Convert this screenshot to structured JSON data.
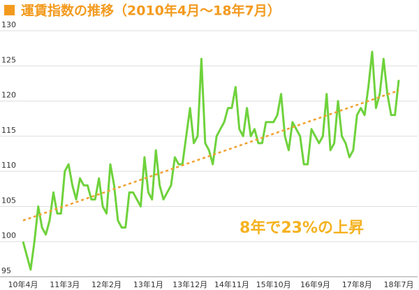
{
  "chart_data": {
    "type": "line",
    "title": "運賃指数の推移（2010年4月～18年7月）",
    "annotation": "8年で23%の上昇",
    "categories": [
      "10年4月",
      null,
      null,
      null,
      null,
      null,
      null,
      null,
      null,
      null,
      null,
      "11年3月",
      null,
      null,
      null,
      null,
      null,
      null,
      null,
      null,
      null,
      null,
      "12年2月",
      null,
      null,
      null,
      null,
      null,
      null,
      null,
      null,
      null,
      null,
      "13年1月",
      null,
      null,
      null,
      null,
      null,
      null,
      null,
      null,
      null,
      null,
      "13年12月",
      null,
      null,
      null,
      null,
      null,
      null,
      null,
      null,
      null,
      null,
      "14年11月",
      null,
      null,
      null,
      null,
      null,
      null,
      null,
      null,
      null,
      null,
      "15年10月",
      null,
      null,
      null,
      null,
      null,
      null,
      null,
      null,
      null,
      null,
      "16年9月",
      null,
      null,
      null,
      null,
      null,
      null,
      null,
      null,
      null,
      null,
      "17年8月",
      null,
      null,
      null,
      null,
      null,
      null,
      null,
      null,
      null,
      null,
      "18年7月"
    ],
    "series": [
      {
        "color": "#6fd23c",
        "values": [
          100,
          98,
          96,
          100,
          105,
          102,
          101,
          103,
          107,
          104,
          104,
          110,
          111,
          108,
          106,
          109,
          108,
          108,
          106,
          106,
          109,
          105,
          104,
          111,
          108,
          103,
          102,
          102,
          107,
          107,
          106,
          105,
          112,
          107,
          106,
          113,
          108,
          106,
          107,
          108,
          112,
          111,
          111,
          115,
          119,
          114,
          115,
          126,
          114,
          113,
          111,
          115,
          116,
          117,
          119,
          119,
          122,
          116,
          115,
          119,
          115,
          116,
          114,
          114,
          117,
          117,
          117,
          118,
          121,
          115,
          113,
          117,
          116,
          115,
          111,
          111,
          116,
          115,
          114,
          115,
          121,
          113,
          114,
          120,
          115,
          114,
          112,
          113,
          118,
          119,
          118,
          122,
          127,
          119,
          121,
          126,
          121,
          118,
          118,
          123
        ]
      }
    ],
    "trend": {
      "color": "#f0a030",
      "values": [
        103,
        121.5
      ]
    },
    "ylim": [
      95,
      130
    ],
    "yticks": [
      95,
      100,
      105,
      110,
      115,
      120,
      125,
      130
    ],
    "grid": true
  }
}
